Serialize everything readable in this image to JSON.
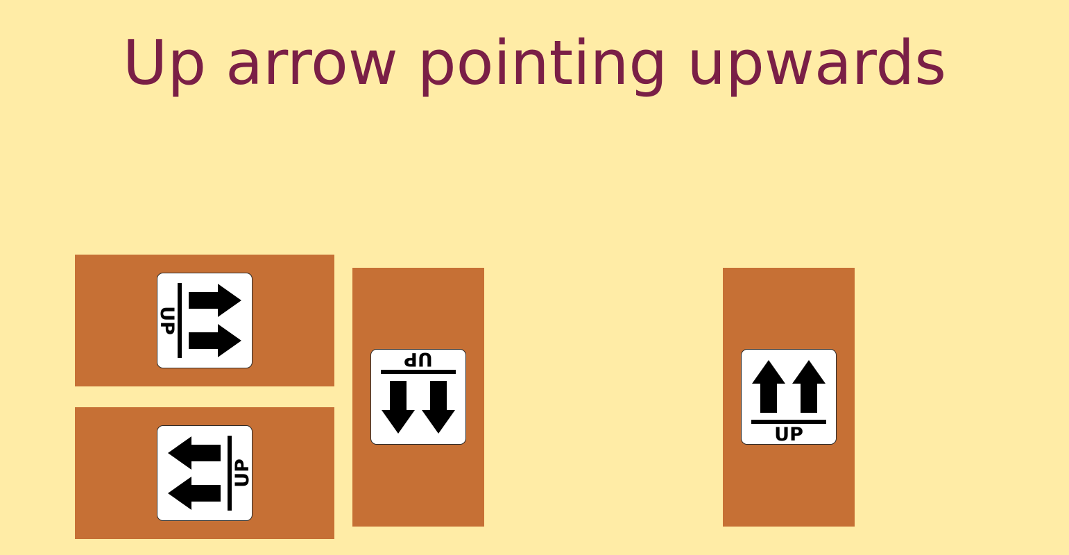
{
  "prompt": "Up arrow pointing upwards",
  "label_text": "UP",
  "colors": {
    "background": "#ffeca6",
    "box": "#c67035",
    "prompt": "#7a1f46",
    "label_bg": "#ffffff",
    "arrow": "#000000"
  },
  "boxes": [
    {
      "id": "box-1",
      "arrow_direction": "right",
      "icon": "this-way-up-label-icon"
    },
    {
      "id": "box-2",
      "arrow_direction": "left",
      "icon": "this-way-up-label-icon"
    },
    {
      "id": "box-3",
      "arrow_direction": "down",
      "icon": "this-way-up-label-icon"
    },
    {
      "id": "box-4",
      "arrow_direction": "up",
      "icon": "this-way-up-label-icon"
    }
  ]
}
